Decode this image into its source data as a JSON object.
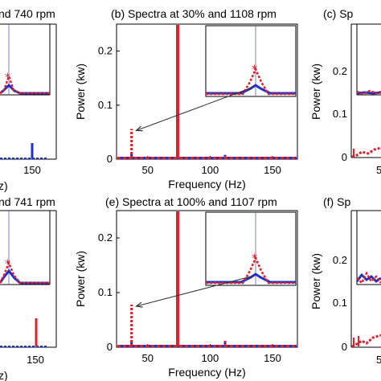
{
  "colors": {
    "spectrum_a": "#2030c8",
    "spectrum_b": "#e0202a",
    "guide": "#5c5cc8",
    "axis": "#000000"
  },
  "chart_data": [
    {
      "panel": "left-top",
      "type": "line",
      "title": "nd 740 rpm",
      "xticks": [
        "150"
      ],
      "xlabel": "z)",
      "peaks": [
        {
          "x": 150,
          "y": 0.012
        }
      ]
    },
    {
      "panel": "b",
      "type": "line",
      "title": "(b)  Spectra at 30% and 1108 rpm",
      "xlabel": "Frequency (Hz)",
      "ylabel": "Power (kw)",
      "xlim": [
        25,
        170
      ],
      "ylim": [
        0,
        0.25
      ],
      "xticks": [
        "50",
        "100",
        "150"
      ],
      "yticks": [
        "0",
        "0.1",
        "0.2"
      ],
      "series": [
        {
          "peaks": [
            {
              "x": 37,
              "y": 0.012
            },
            {
              "x": 74,
              "y": 0.25
            },
            {
              "x": 112,
              "y": 0.008
            },
            {
              "x": 148,
              "y": 0.004
            }
          ]
        },
        {
          "peaks": [
            {
              "x": 37,
              "y": 0.056
            },
            {
              "x": 74,
              "y": 0.25
            },
            {
              "x": 112,
              "y": 0.008
            },
            {
              "x": 148,
              "y": 0.004
            }
          ]
        }
      ],
      "annotation": {
        "from_x": 37,
        "from_y": 0.056
      }
    },
    {
      "panel": "c",
      "type": "line",
      "title": "(c)  Sp",
      "ylabel": "Power (kw)",
      "yticks": [
        "0",
        "0.1",
        "0.2"
      ],
      "xticks": [
        "5"
      ]
    },
    {
      "panel": "left-bottom",
      "type": "line",
      "title": "nd 741 rpm",
      "xticks": [
        "150"
      ],
      "xlabel": "z)",
      "peaks": [
        {
          "x": 150,
          "y": 0.072
        }
      ]
    },
    {
      "panel": "e",
      "type": "line",
      "title": "(e)  Spectra at 100% and 1107 rpm",
      "xlabel": "Frequency (Hz)",
      "ylabel": "Power (kw)",
      "xlim": [
        25,
        170
      ],
      "ylim": [
        0,
        0.25
      ],
      "xticks": [
        "50",
        "100",
        "150"
      ],
      "yticks": [
        "0",
        "0.1",
        "0.2"
      ],
      "series": [
        {
          "peaks": [
            {
              "x": 37,
              "y": 0.012
            },
            {
              "x": 74,
              "y": 0.25
            },
            {
              "x": 112,
              "y": 0.01
            },
            {
              "x": 148,
              "y": 0.004
            }
          ]
        },
        {
          "peaks": [
            {
              "x": 37,
              "y": 0.078
            },
            {
              "x": 74,
              "y": 0.25
            },
            {
              "x": 112,
              "y": 0.012
            },
            {
              "x": 148,
              "y": 0.004
            }
          ]
        }
      ],
      "annotation": {
        "from_x": 37,
        "from_y": 0.078
      }
    },
    {
      "panel": "f",
      "type": "line",
      "title": "(f)  Sp",
      "ylabel": "Power (kw)",
      "yticks": [
        "0",
        "0.1",
        "0.2"
      ],
      "xticks": [
        "5"
      ]
    }
  ]
}
